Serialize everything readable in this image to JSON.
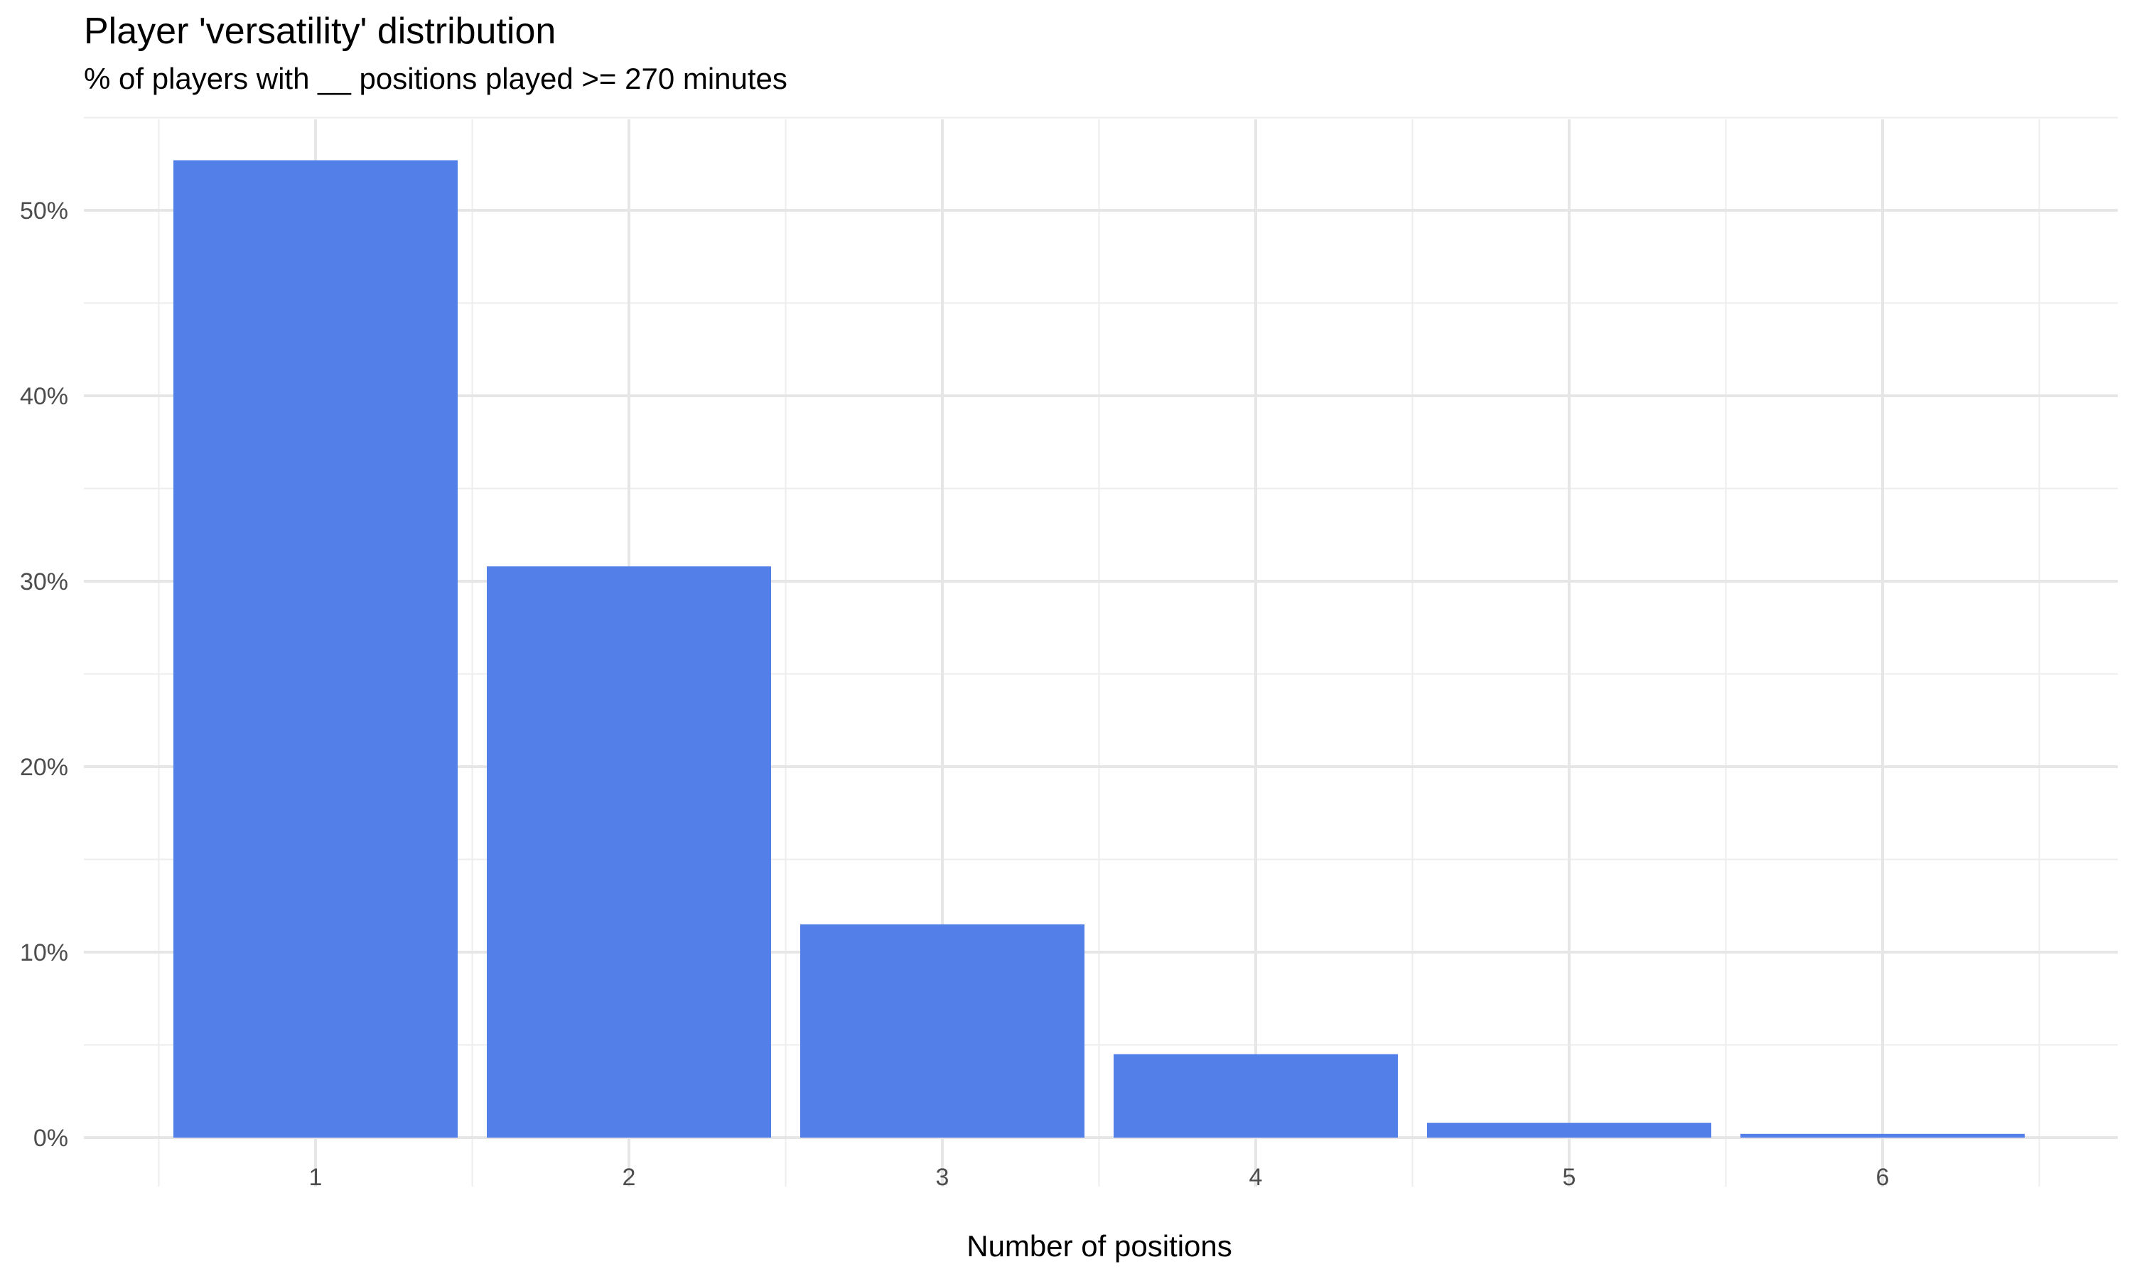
{
  "chart_data": {
    "type": "bar",
    "title": "Player 'versatility' distribution",
    "subtitle": "% of players with __ positions played >= 270 minutes",
    "xlabel": "Number of positions",
    "ylabel": "",
    "categories": [
      "1",
      "2",
      "3",
      "4",
      "5",
      "6"
    ],
    "values": [
      52.7,
      30.8,
      11.5,
      4.5,
      0.8,
      0.2
    ],
    "value_unit": "%",
    "ylim": [
      0,
      55
    ],
    "yticks": [
      0,
      10,
      20,
      30,
      40,
      50
    ],
    "ytick_labels": [
      "0%",
      "10%",
      "20%",
      "30%",
      "40%",
      "50%"
    ],
    "bar_color": "#5380E8",
    "grid": true,
    "legend": "none"
  }
}
